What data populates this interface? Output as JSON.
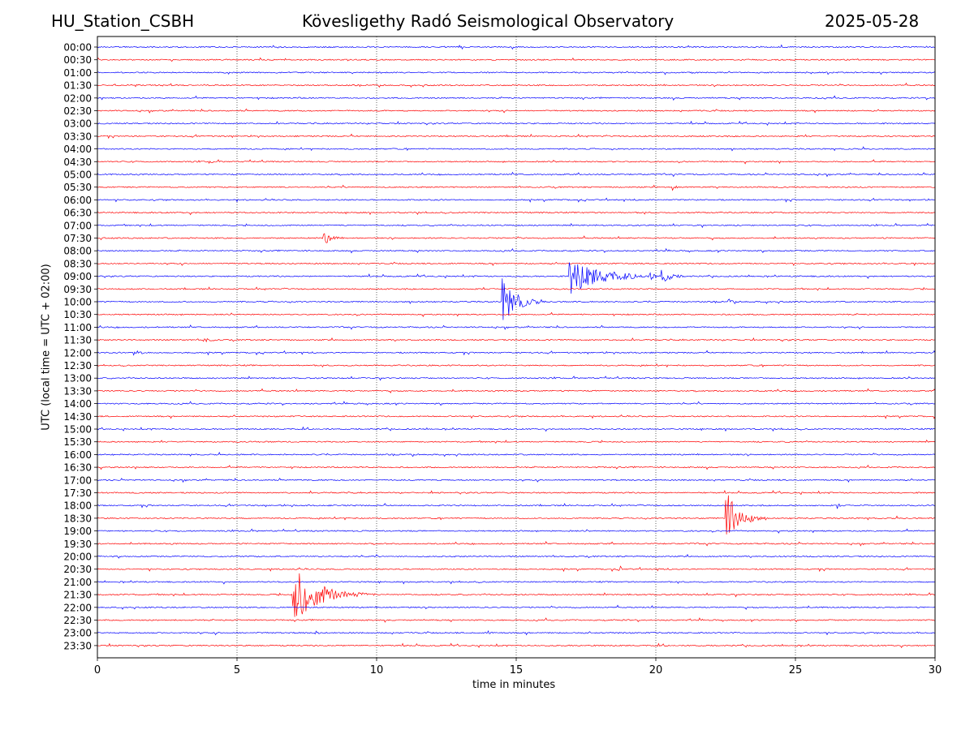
{
  "header": {
    "station": "HU_Station_CSBH",
    "observatory": "Kövesligethy Radó Seismological Observatory",
    "date": "2025-05-28"
  },
  "chart_data": {
    "type": "line",
    "title": "Kövesligethy Radó Seismological Observatory",
    "xlabel": "time in minutes",
    "ylabel": "UTC (local time = UTC + 02:00)",
    "xlim": [
      0,
      30
    ],
    "xticks": [
      0,
      5,
      10,
      15,
      20,
      25,
      30
    ],
    "grid": "vertical dotted at x ticks",
    "colors": {
      "even_trace": "#0000ff",
      "odd_trace": "#ff0000"
    },
    "traces": [
      "00:00",
      "00:30",
      "01:00",
      "01:30",
      "02:00",
      "02:30",
      "03:00",
      "03:30",
      "04:00",
      "04:30",
      "05:00",
      "05:30",
      "06:00",
      "06:30",
      "07:00",
      "07:30",
      "08:00",
      "08:30",
      "09:00",
      "09:30",
      "10:00",
      "10:30",
      "11:00",
      "11:30",
      "12:00",
      "12:30",
      "13:00",
      "13:30",
      "14:00",
      "14:30",
      "15:00",
      "15:30",
      "16:00",
      "16:30",
      "17:00",
      "17:30",
      "18:00",
      "18:30",
      "19:00",
      "19:30",
      "20:00",
      "20:30",
      "21:00",
      "21:30",
      "22:00",
      "22:30",
      "23:00",
      "23:30"
    ],
    "events": [
      {
        "trace": "04:30",
        "minute": 4.0,
        "amplitude": 0.3,
        "duration": 0.3
      },
      {
        "trace": "05:30",
        "minute": 20.6,
        "amplitude": 0.3,
        "duration": 0.4
      },
      {
        "trace": "07:30",
        "minute": 8.1,
        "amplitude": 0.55,
        "duration": 1.0
      },
      {
        "trace": "09:00",
        "minute": 16.9,
        "amplitude": 1.5,
        "duration": 3.5
      },
      {
        "trace": "09:00",
        "minute": 20.2,
        "amplitude": 0.6,
        "duration": 1.2
      },
      {
        "trace": "09:00",
        "minute": 19.8,
        "amplitude": 0.4,
        "duration": 0.6
      },
      {
        "trace": "10:00",
        "minute": 14.5,
        "amplitude": 2.0,
        "duration": 1.6
      },
      {
        "trace": "10:00",
        "minute": 22.6,
        "amplitude": 0.25,
        "duration": 0.6
      },
      {
        "trace": "11:30",
        "minute": 3.8,
        "amplitude": 0.25,
        "duration": 1.0
      },
      {
        "trace": "12:00",
        "minute": 1.3,
        "amplitude": 0.25,
        "duration": 1.0
      },
      {
        "trace": "18:00",
        "minute": 26.5,
        "amplitude": 0.3,
        "duration": 0.3
      },
      {
        "trace": "18:30",
        "minute": 22.5,
        "amplitude": 2.3,
        "duration": 1.4
      },
      {
        "trace": "18:30",
        "minute": 23.4,
        "amplitude": 0.35,
        "duration": 0.4
      },
      {
        "trace": "20:30",
        "minute": 18.7,
        "amplitude": 0.3,
        "duration": 0.4
      },
      {
        "trace": "21:30",
        "minute": 7.0,
        "amplitude": 2.2,
        "duration": 3.0
      },
      {
        "trace": "23:00",
        "minute": 7.8,
        "amplitude": 0.25,
        "duration": 0.4
      },
      {
        "trace": "23:00",
        "minute": 14.0,
        "amplitude": 0.2,
        "duration": 0.4
      }
    ]
  }
}
